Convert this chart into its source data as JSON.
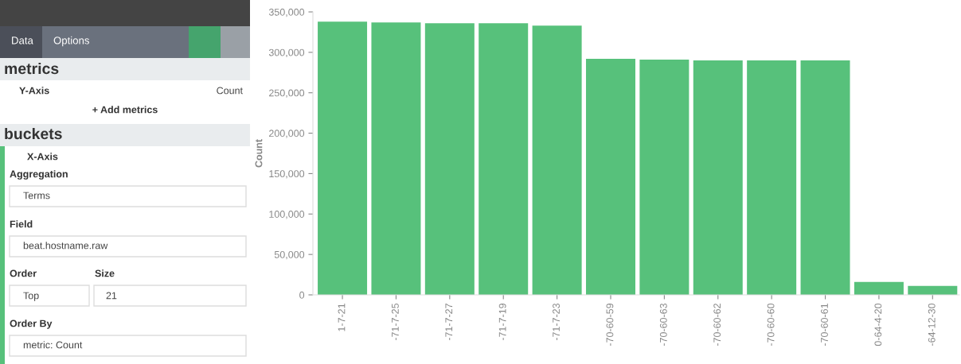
{
  "chart_data": [
    {
      "type": "other",
      "annotations": [
        "Data",
        "Options",
        "metrics",
        "Y-Axis",
        "Count",
        "+ Add metrics",
        "buckets",
        "X-Axis",
        "Aggregation",
        "Terms",
        "Field",
        "beat.hostname.raw",
        "Order",
        "Size",
        "Top",
        "21",
        "Order By",
        "metric: Count"
      ]
    },
    {
      "type": "bar",
      "ylabel": "Count",
      "categories": [
        "1-7-21",
        "-71-7-25",
        "-71-7-27",
        "-71-7-19",
        "-71-7-23",
        "-70-60-59",
        "-70-60-63",
        "-70-60-62",
        "-70-60-60",
        "-70-60-61",
        "0-64-4-20",
        "-64-12-30"
      ],
      "values": [
        338000,
        337000,
        336000,
        336000,
        333000,
        292000,
        291000,
        290000,
        290000,
        290000,
        16000,
        11000
      ],
      "color": "#57c17b",
      "ylim": [
        0,
        350000
      ],
      "yticks": [
        0,
        {
          "value": 50000,
          "label": "50,000"
        },
        {
          "value": 100000,
          "label": "100,000"
        },
        {
          "value": 150000,
          "label": "150,000"
        },
        {
          "value": 200000,
          "label": "200,000"
        },
        {
          "value": 250000,
          "label": "250,000"
        },
        {
          "value": 300000,
          "label": "300,000"
        },
        {
          "value": 350000,
          "label": "350,000"
        }
      ],
      "grid": false
    }
  ]
}
